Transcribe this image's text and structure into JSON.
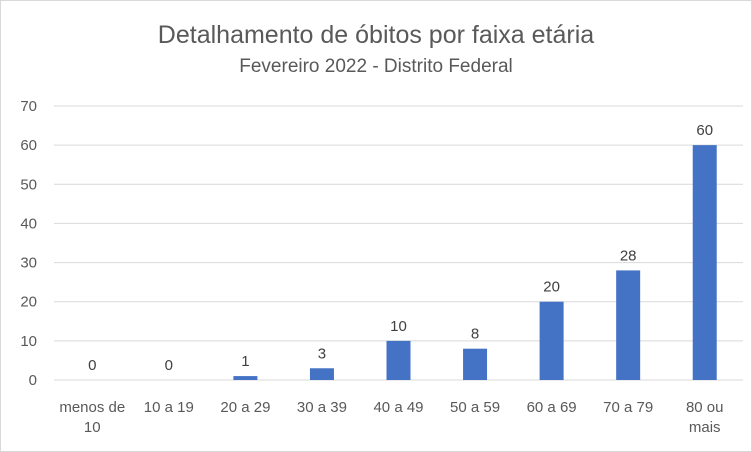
{
  "chart_data": {
    "type": "bar",
    "title": "Detalhamento de óbitos por faixa etária",
    "subtitle": "Fevereiro 2022 - Distrito Federal",
    "categories": [
      [
        "menos de",
        "10"
      ],
      [
        "10 a 19"
      ],
      [
        "20 a 29"
      ],
      [
        "30 a 39"
      ],
      [
        "40 a 49"
      ],
      [
        "50 a 59"
      ],
      [
        "60 a 69"
      ],
      [
        "70 a 79"
      ],
      [
        "80 ou",
        "mais"
      ]
    ],
    "values": [
      0,
      0,
      1,
      3,
      10,
      8,
      20,
      28,
      60
    ],
    "data_labels": [
      "0",
      "0",
      "1",
      "3",
      "10",
      "8",
      "20",
      "28",
      "60"
    ],
    "ylim": [
      0,
      70
    ],
    "yticks": [
      0,
      10,
      20,
      30,
      40,
      50,
      60,
      70
    ],
    "grid": true,
    "legend": "none",
    "colors": {
      "bar": "#4472c4",
      "grid": "#d9d9d9",
      "text": "#595959"
    }
  }
}
